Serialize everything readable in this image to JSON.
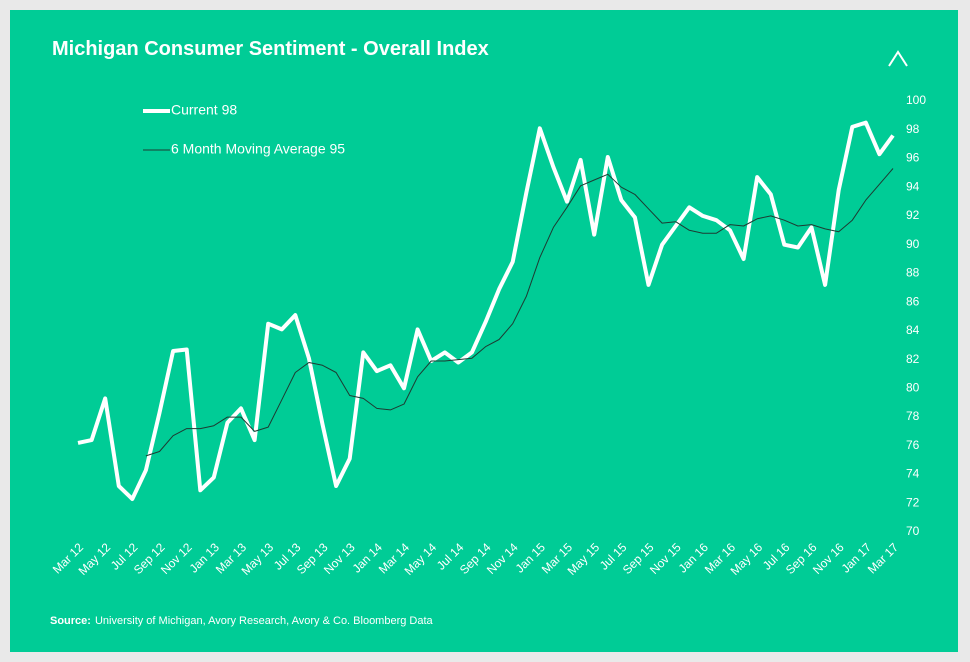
{
  "chart_data": {
    "type": "line",
    "title": "Michigan Consumer Sentiment - Overall Index",
    "source_label": "Source:",
    "source_text": "University of Michigan,  Avory Research, Avory & Co. Bloomberg Data",
    "categories": [
      "Mar 12",
      null,
      "May 12",
      null,
      "Jul 12",
      null,
      "Sep 12",
      null,
      "Nov 12",
      null,
      "Jan 13",
      null,
      "Mar 13",
      null,
      "May 13",
      null,
      "Jul 13",
      null,
      "Sep 13",
      null,
      "Nov 13",
      null,
      "Jan 14",
      null,
      "Mar 14",
      null,
      "May 14",
      null,
      "Jul 14",
      null,
      "Sep 14",
      null,
      "Nov 14",
      null,
      "Jan 15",
      null,
      "Mar 15",
      null,
      "May 15",
      null,
      "Jul 15",
      null,
      "Sep 15",
      null,
      "Nov 15",
      null,
      "Jan 16",
      null,
      "Mar 16",
      null,
      "May 16",
      null,
      "Jul 16",
      null,
      "Sep 16",
      null,
      "Nov 16",
      null,
      "Jan 17",
      null,
      "Mar 17"
    ],
    "series": [
      {
        "name": "Current 98",
        "color": "#ffffff",
        "width": 4,
        "values": [
          76.2,
          76.4,
          79.3,
          73.2,
          72.3,
          74.3,
          78.3,
          82.6,
          82.7,
          72.9,
          73.8,
          77.6,
          78.6,
          76.4,
          84.5,
          84.1,
          85.1,
          82.1,
          77.5,
          73.2,
          75.1,
          82.5,
          81.2,
          81.6,
          80.0,
          84.1,
          81.9,
          82.5,
          81.8,
          82.5,
          84.6,
          86.9,
          88.8,
          93.6,
          98.1,
          95.4,
          93.0,
          95.9,
          90.7,
          96.1,
          93.1,
          91.9,
          87.2,
          90.0,
          91.3,
          92.6,
          92.0,
          91.7,
          91.0,
          89.0,
          94.7,
          93.5,
          90.0,
          89.8,
          91.2,
          87.2,
          93.8,
          98.2,
          98.5,
          96.3,
          97.6
        ]
      },
      {
        "name": "6 Month Moving Average 95",
        "color": "#1d3b32",
        "width": 1,
        "values": [
          null,
          null,
          null,
          null,
          null,
          75.3,
          75.6,
          76.7,
          77.2,
          77.2,
          77.4,
          78.0,
          78.0,
          77.0,
          77.3,
          79.2,
          81.1,
          81.8,
          81.6,
          81.1,
          79.5,
          79.3,
          78.6,
          78.5,
          78.9,
          80.8,
          81.9,
          81.9,
          82.0,
          82.1,
          82.9,
          83.4,
          84.5,
          86.4,
          89.1,
          91.2,
          92.6,
          94.1,
          94.5,
          94.9,
          94.0,
          93.5,
          92.5,
          91.5,
          91.6,
          91.0,
          90.8,
          90.8,
          91.4,
          91.3,
          91.8,
          92.0,
          91.7,
          91.3,
          91.4,
          91.1,
          90.9,
          91.7,
          93.1,
          94.2,
          95.3
        ]
      }
    ],
    "ylim": [
      70,
      100
    ],
    "yticks": [
      70,
      72,
      74,
      76,
      78,
      80,
      82,
      84,
      86,
      88,
      90,
      92,
      94,
      96,
      98,
      100
    ],
    "background": "#00cc96",
    "grid": false
  }
}
